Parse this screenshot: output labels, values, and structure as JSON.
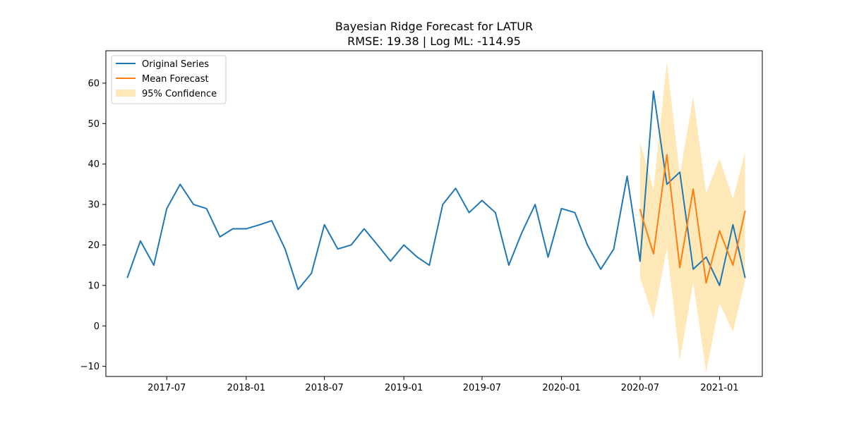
{
  "chart_data": {
    "type": "line",
    "title": "Bayesian Ridge Forecast for LATUR",
    "subtitle": "RMSE: 19.38 | Log ML: -114.95",
    "xlabel": "",
    "ylabel": "",
    "xlim": [
      "2017-02-10",
      "2021-04-10"
    ],
    "ylim": [
      -12.5,
      68.0
    ],
    "x_ticks": [
      "2017-07-01",
      "2018-01-01",
      "2018-07-01",
      "2019-01-01",
      "2019-07-01",
      "2020-01-01",
      "2020-07-01",
      "2021-01-01"
    ],
    "x_tick_labels": [
      "2017-07",
      "2018-01",
      "2018-07",
      "2019-01",
      "2019-07",
      "2020-01",
      "2020-07",
      "2021-01"
    ],
    "y_ticks": [
      -10,
      0,
      10,
      20,
      30,
      40,
      50,
      60
    ],
    "y_tick_labels": [
      "−10",
      "0",
      "10",
      "20",
      "30",
      "40",
      "50",
      "60"
    ],
    "grid": false,
    "legend_position": "top-left",
    "series": [
      {
        "name": "Original Series",
        "color": "#1f77b4",
        "x": [
          "2017-04-01",
          "2017-05-01",
          "2017-06-01",
          "2017-07-01",
          "2017-08-01",
          "2017-09-01",
          "2017-10-01",
          "2017-11-01",
          "2017-12-01",
          "2018-01-01",
          "2018-02-01",
          "2018-03-01",
          "2018-04-01",
          "2018-05-01",
          "2018-06-01",
          "2018-07-01",
          "2018-08-01",
          "2018-09-01",
          "2018-10-01",
          "2018-11-01",
          "2018-12-01",
          "2019-01-01",
          "2019-02-01",
          "2019-03-01",
          "2019-04-01",
          "2019-05-01",
          "2019-06-01",
          "2019-07-01",
          "2019-08-01",
          "2019-09-01",
          "2019-10-01",
          "2019-11-01",
          "2019-12-01",
          "2020-01-01",
          "2020-02-01",
          "2020-03-01",
          "2020-04-01",
          "2020-05-01",
          "2020-06-01",
          "2020-07-01",
          "2020-08-01",
          "2020-09-01",
          "2020-10-01",
          "2020-11-01",
          "2020-12-01",
          "2021-01-01",
          "2021-02-01",
          "2021-03-01"
        ],
        "values": [
          12,
          21,
          15,
          29,
          35,
          30,
          29,
          22,
          24,
          24,
          25,
          26,
          19,
          9,
          13,
          25,
          19,
          20,
          24,
          20,
          16,
          20,
          17,
          15,
          30,
          34,
          28,
          31,
          28,
          15,
          23,
          30,
          17,
          29,
          28,
          20,
          14,
          19,
          37,
          16,
          58,
          35,
          38,
          14,
          17,
          10,
          25,
          12
        ]
      },
      {
        "name": "Mean Forecast",
        "color": "#ff7f0e",
        "x": [
          "2020-07-01",
          "2020-08-01",
          "2020-09-01",
          "2020-10-01",
          "2020-11-01",
          "2020-12-01",
          "2021-01-01",
          "2021-02-01",
          "2021-03-01"
        ],
        "values": [
          28.7,
          17.8,
          42.3,
          14.4,
          33.8,
          10.6,
          23.5,
          15.0,
          28.3
        ]
      },
      {
        "name": "95% Confidence",
        "type": "area",
        "color": "#ffe8b8",
        "x": [
          "2020-07-01",
          "2020-08-01",
          "2020-09-01",
          "2020-10-01",
          "2020-11-01",
          "2020-12-01",
          "2021-01-01",
          "2021-02-01",
          "2021-03-01"
        ],
        "lower": [
          12.0,
          1.8,
          19.2,
          -8.5,
          10.8,
          -11.5,
          5.6,
          -1.5,
          11.2
        ],
        "upper": [
          45.4,
          33.8,
          65.3,
          37.3,
          56.7,
          32.8,
          41.4,
          31.4,
          42.9
        ]
      }
    ]
  }
}
